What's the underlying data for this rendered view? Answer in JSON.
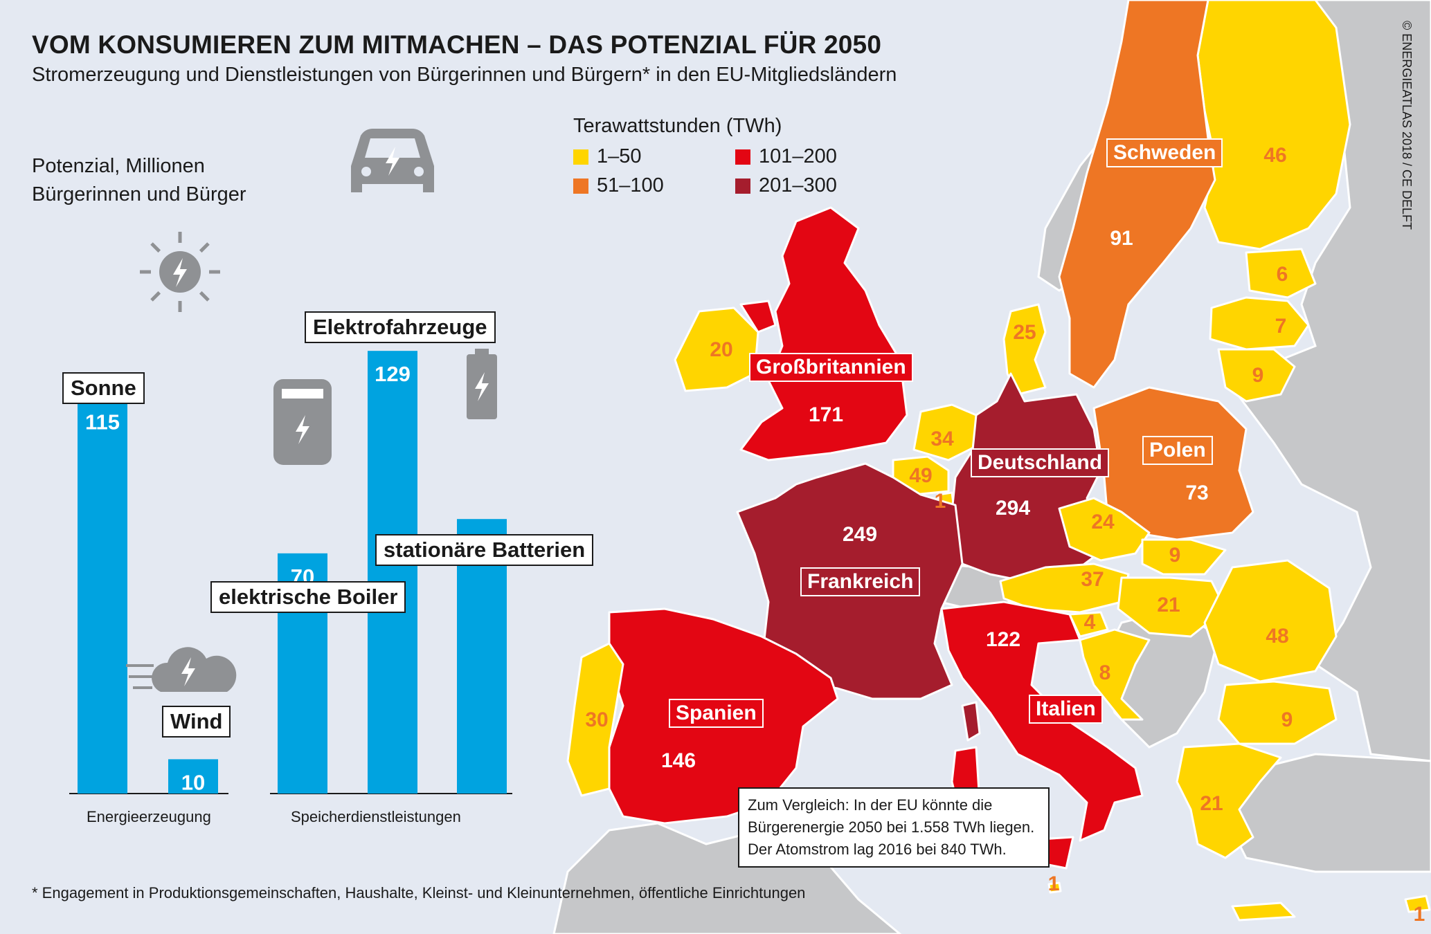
{
  "header": {
    "title": "VOM KONSUMIEREN ZUM MITMACHEN – DAS POTENZIAL FÜR 2050",
    "subtitle": "Stromerzeugung und Dienstleistungen von Bürgerinnen und Bürgern* in den EU-Mitgliedsländern",
    "credit": "© ENERGIEATLAS 2018 / CE DELFT"
  },
  "colors": {
    "background": "#e4e9f2",
    "bar": "#00a3e0",
    "class_1_50": "#ffd500",
    "class_51_100": "#ee7624",
    "class_101_200": "#e30613",
    "class_201_300": "#a51d2d",
    "non_eu": "#c6c7c9",
    "icon_gray": "#8f9194"
  },
  "chart_data": [
    {
      "type": "bar",
      "ylabel": "Potenzial, Millionen Bürgerinnen und Bürger",
      "groups": [
        {
          "name": "Energieerzeugung",
          "categories": [
            "Sonne",
            "Wind"
          ],
          "values": [
            115,
            10
          ]
        },
        {
          "name": "Speicherdienstleistungen",
          "categories": [
            "elektrische Boiler",
            "Elektrofahrzeuge",
            "stationäre Batterien"
          ],
          "values": [
            70,
            129,
            80
          ]
        }
      ],
      "icons": [
        "sun-lightning-icon",
        "cloud-wind-lightning-icon",
        "boiler-icon",
        "electric-car-icon",
        "battery-icon"
      ],
      "grid": false
    },
    {
      "type": "map",
      "legend": {
        "title": "Terawattstunden (TWh)",
        "classes": [
          {
            "label": "1–50",
            "color": "#ffd500"
          },
          {
            "label": "51–100",
            "color": "#ee7624"
          },
          {
            "label": "101–200",
            "color": "#e30613"
          },
          {
            "label": "201–300",
            "color": "#a51d2d"
          }
        ],
        "placement": "top-center"
      },
      "named_countries": [
        {
          "name": "Schweden",
          "value": 91
        },
        {
          "name": "Großbritannien",
          "value": 171
        },
        {
          "name": "Deutschland",
          "value": 294
        },
        {
          "name": "Polen",
          "value": 73
        },
        {
          "name": "Frankreich",
          "value": 249
        },
        {
          "name": "Spanien",
          "value": 146
        },
        {
          "name": "Italien",
          "value": 122
        }
      ],
      "other_values": [
        46,
        6,
        7,
        9,
        20,
        25,
        34,
        49,
        1,
        24,
        9,
        37,
        21,
        4,
        48,
        8,
        9,
        30,
        21,
        1,
        1
      ]
    }
  ],
  "notes": {
    "compare": "Zum Vergleich: In der EU könnte die Bürgerenergie 2050 bei 1.558 TWh liegen. Der Atomstrom lag 2016 bei 840 TWh.",
    "footnote": "* Engagement in Produktionsgemeinschaften, Haushalte, Kleinst- und Kleinunternehmen, öffentliche Einrichtungen"
  }
}
